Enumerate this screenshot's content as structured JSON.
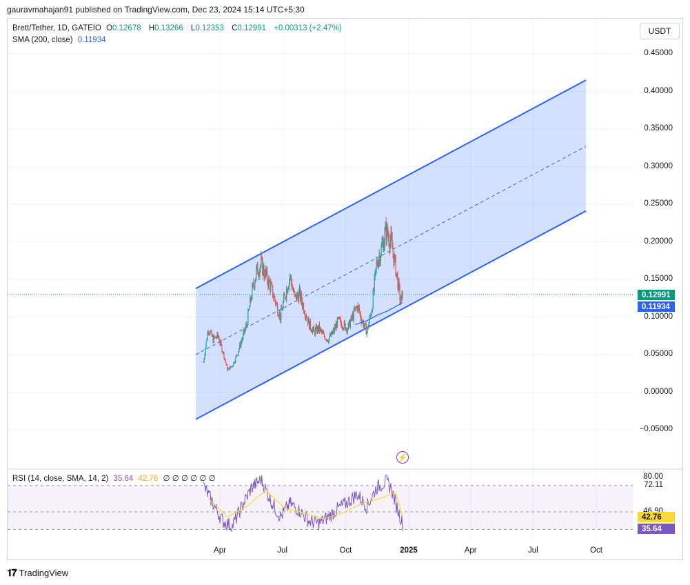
{
  "header": {
    "published": "gauravmahajan91 published on TradingView.com, Dec 23, 2024 15:14 UTC+5:30"
  },
  "legend": {
    "symbol": "Brett/Tether, 1D, GATEIO",
    "o_label": "O",
    "o": "0.12678",
    "h_label": "H",
    "h": "0.13266",
    "l_label": "L",
    "l": "0.12353",
    "c_label": "C",
    "c": "0.12991",
    "change": "+0.00313 (+2.47%)",
    "sma_label": "SMA (200, close)",
    "sma_value": "0.11934"
  },
  "currency_button": "USDT",
  "rsi_legend": {
    "label": "RSI (14, close, SMA, 14, 2)",
    "rsi": "35.64",
    "sma": "42.76",
    "extras": "∅ ∅ ∅ ∅ ∅ ∅"
  },
  "price_axis": [
    "0.45000",
    "0.40000",
    "0.35000",
    "0.30000",
    "0.25000",
    "0.20000",
    "0.15000",
    "0.10000",
    "0.05000",
    "0.00000",
    "−0.05000"
  ],
  "rsi_axis": [
    "80.00",
    "72.11",
    "46.90"
  ],
  "badges": {
    "price": "0.12991",
    "sma": "0.11934",
    "rsi_sma": "42.76",
    "rsi": "35.64"
  },
  "time_axis": [
    "Apr",
    "Jul",
    "Oct",
    "2025",
    "Apr",
    "Jul",
    "Oct"
  ],
  "footer": {
    "logo": "TradingView"
  },
  "colors": {
    "up": "#26a69a",
    "down": "#ef5350",
    "channel": "#2962ff",
    "sma": "#2962ff",
    "rsi": "#7e57c2",
    "rsi_sma": "#fdd835",
    "channel_fill": "rgba(41,98,255,0.2)"
  },
  "chart_data": {
    "type": "candlestick",
    "symbol": "Brett/Tether",
    "ylim": [
      -0.07,
      0.47
    ],
    "current_price": 0.12991,
    "sma200": 0.11934,
    "price_path": [
      [
        "2024-03-08",
        0.04
      ],
      [
        "2024-03-15",
        0.085
      ],
      [
        "2024-03-22",
        0.07
      ],
      [
        "2024-03-29",
        0.075
      ],
      [
        "2024-04-05",
        0.055
      ],
      [
        "2024-04-12",
        0.03
      ],
      [
        "2024-04-19",
        0.035
      ],
      [
        "2024-04-26",
        0.05
      ],
      [
        "2024-05-03",
        0.07
      ],
      [
        "2024-05-10",
        0.09
      ],
      [
        "2024-05-17",
        0.13
      ],
      [
        "2024-05-24",
        0.16
      ],
      [
        "2024-05-31",
        0.17
      ],
      [
        "2024-06-07",
        0.155
      ],
      [
        "2024-06-14",
        0.14
      ],
      [
        "2024-06-21",
        0.12
      ],
      [
        "2024-06-28",
        0.1
      ],
      [
        "2024-07-05",
        0.13
      ],
      [
        "2024-07-12",
        0.155
      ],
      [
        "2024-07-19",
        0.125
      ],
      [
        "2024-07-26",
        0.13
      ],
      [
        "2024-08-02",
        0.11
      ],
      [
        "2024-08-09",
        0.09
      ],
      [
        "2024-08-16",
        0.08
      ],
      [
        "2024-08-23",
        0.085
      ],
      [
        "2024-08-30",
        0.075
      ],
      [
        "2024-09-06",
        0.07
      ],
      [
        "2024-09-13",
        0.08
      ],
      [
        "2024-09-20",
        0.095
      ],
      [
        "2024-09-27",
        0.09
      ],
      [
        "2024-10-04",
        0.085
      ],
      [
        "2024-10-11",
        0.1
      ],
      [
        "2024-10-18",
        0.115
      ],
      [
        "2024-10-25",
        0.095
      ],
      [
        "2024-11-01",
        0.08
      ],
      [
        "2024-11-08",
        0.11
      ],
      [
        "2024-11-15",
        0.17
      ],
      [
        "2024-11-22",
        0.19
      ],
      [
        "2024-11-29",
        0.215
      ],
      [
        "2024-12-06",
        0.2
      ],
      [
        "2024-12-13",
        0.165
      ],
      [
        "2024-12-20",
        0.12
      ],
      [
        "2024-12-23",
        0.12991
      ]
    ],
    "sma_path": [
      [
        "2024-10-15",
        0.09
      ],
      [
        "2024-11-01",
        0.095
      ],
      [
        "2024-11-15",
        0.102
      ],
      [
        "2024-12-01",
        0.108
      ],
      [
        "2024-12-15",
        0.115
      ],
      [
        "2024-12-23",
        0.11934
      ]
    ],
    "channel": {
      "upper": [
        [
          "2024-02-26",
          0.138
        ],
        [
          "2025-09-16",
          0.415
        ]
      ],
      "mid": [
        [
          "2024-02-26",
          0.05
        ],
        [
          "2025-09-16",
          0.327
        ]
      ],
      "lower": [
        [
          "2024-02-26",
          -0.036
        ],
        [
          "2025-09-16",
          0.241
        ]
      ]
    },
    "rsi_panel": {
      "levels": [
        80,
        72.11,
        46.9
      ],
      "rsi_last": 35.64,
      "rsi_sma_last": 42.76,
      "rsi_path": [
        [
          "2024-03-08",
          72
        ],
        [
          "2024-03-22",
          55
        ],
        [
          "2024-04-05",
          38
        ],
        [
          "2024-04-19",
          33
        ],
        [
          "2024-05-03",
          52
        ],
        [
          "2024-05-17",
          70
        ],
        [
          "2024-05-31",
          78
        ],
        [
          "2024-06-14",
          58
        ],
        [
          "2024-06-28",
          42
        ],
        [
          "2024-07-12",
          55
        ],
        [
          "2024-07-26",
          48
        ],
        [
          "2024-08-09",
          38
        ],
        [
          "2024-08-23",
          36
        ],
        [
          "2024-09-06",
          42
        ],
        [
          "2024-09-20",
          50
        ],
        [
          "2024-10-04",
          56
        ],
        [
          "2024-10-18",
          64
        ],
        [
          "2024-11-01",
          52
        ],
        [
          "2024-11-15",
          70
        ],
        [
          "2024-11-29",
          76
        ],
        [
          "2024-12-06",
          70
        ],
        [
          "2024-12-13",
          55
        ],
        [
          "2024-12-23",
          35.64
        ]
      ],
      "rsi_sma_path": [
        [
          "2024-03-15",
          60
        ],
        [
          "2024-04-12",
          42
        ],
        [
          "2024-05-10",
          52
        ],
        [
          "2024-06-07",
          68
        ],
        [
          "2024-07-05",
          50
        ],
        [
          "2024-08-02",
          46
        ],
        [
          "2024-08-30",
          40
        ],
        [
          "2024-09-27",
          46
        ],
        [
          "2024-10-25",
          55
        ],
        [
          "2024-11-22",
          60
        ],
        [
          "2024-12-13",
          66
        ],
        [
          "2024-12-23",
          42.76
        ]
      ]
    }
  }
}
